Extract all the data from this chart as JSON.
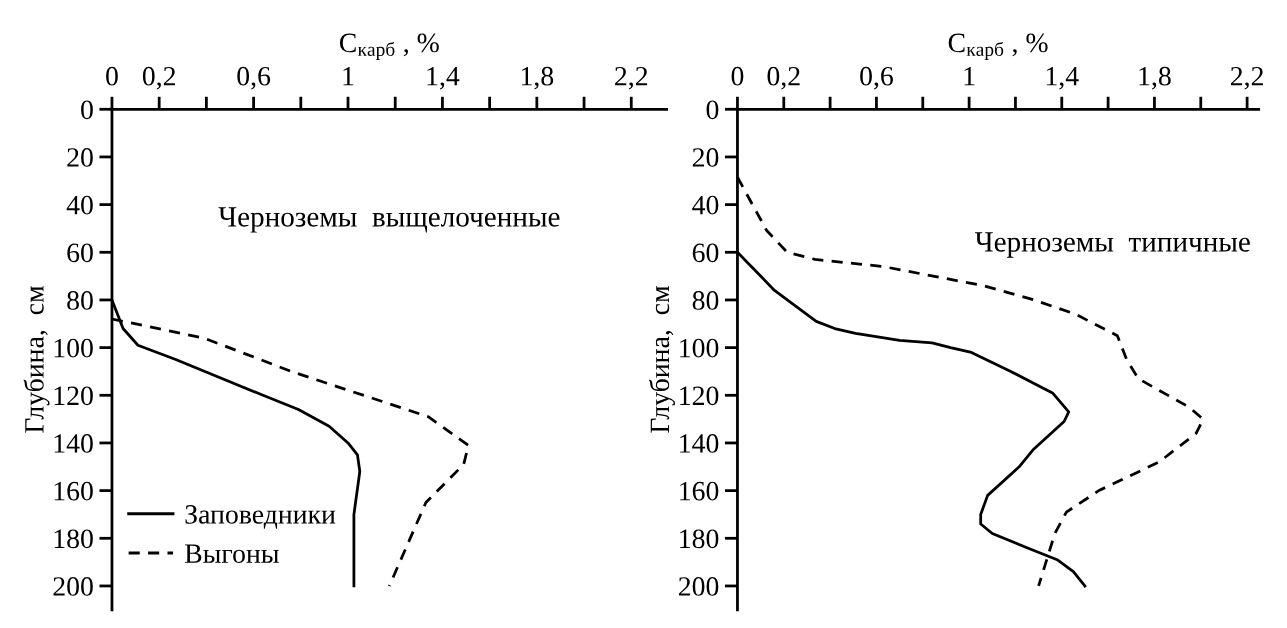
{
  "chart_data": [
    {
      "type": "line",
      "xlabel": "C$_{карб}$ , %",
      "ylabel": "Глубина,  см",
      "annotations": [
        "Черноземы  выщелоченные"
      ],
      "legend": "bottom left",
      "xlim": [
        0,
        2.35
      ],
      "xticks": [
        {
          "value": 0,
          "label": "0"
        },
        {
          "value": 0.2,
          "label": "0,2"
        },
        {
          "value": 0.4,
          "label": null
        },
        {
          "value": 0.6,
          "label": "0,6"
        },
        {
          "value": 0.8,
          "label": null
        },
        {
          "value": 1,
          "label": "1"
        },
        {
          "value": 1.2,
          "label": null
        },
        {
          "value": 1.4,
          "label": "1,4"
        },
        {
          "value": 1.6,
          "label": null
        },
        {
          "value": 1.8,
          "label": "1,8"
        },
        {
          "value": 2.0,
          "label": null
        },
        {
          "value": 2.2,
          "label": "2,2"
        }
      ],
      "ylim": [
        210,
        0
      ],
      "yticks": [
        {
          "value": 0,
          "label": "0"
        },
        {
          "value": 20,
          "label": "20"
        },
        {
          "value": 40,
          "label": "40"
        },
        {
          "value": 60,
          "label": "60"
        },
        {
          "value": 80,
          "label": "80"
        },
        {
          "value": 100,
          "label": "100"
        },
        {
          "value": 120,
          "label": "120"
        },
        {
          "value": 140,
          "label": "140"
        },
        {
          "value": 160,
          "label": "160"
        },
        {
          "value": 180,
          "label": "180"
        },
        {
          "value": 200,
          "label": "200"
        }
      ],
      "series": [
        {
          "name": "Заповедники",
          "color": "#000000",
          "line_style": "solid",
          "x": [
            0,
            0.047,
            0.11,
            0.27,
            0.64,
            0.79,
            0.92,
            1.0,
            1.04,
            1.05,
            1.025,
            1.025
          ],
          "values": [
            80,
            92,
            99,
            105,
            120,
            126,
            133,
            140,
            145,
            152,
            170,
            200
          ]
        },
        {
          "name": "Выгоны",
          "color": "#000000",
          "line_style": "dashed",
          "x": [
            0,
            0.39,
            0.76,
            1.34,
            1.51,
            1.49,
            1.33,
            1.175
          ],
          "values": [
            88,
            96,
            110,
            129,
            141,
            149,
            165,
            200
          ]
        }
      ]
    },
    {
      "type": "line",
      "xlabel": "C$_{карб}$ , %",
      "ylabel": "Глубина,  см",
      "annotations": [
        "Черноземы  типичные"
      ],
      "xlim": [
        0,
        2.25
      ],
      "xticks": [
        {
          "value": 0,
          "label": "0"
        },
        {
          "value": 0.2,
          "label": "0,2"
        },
        {
          "value": 0.4,
          "label": null
        },
        {
          "value": 0.6,
          "label": "0,6"
        },
        {
          "value": 0.8,
          "label": null
        },
        {
          "value": 1,
          "label": "1"
        },
        {
          "value": 1.2,
          "label": null
        },
        {
          "value": 1.4,
          "label": "1,4"
        },
        {
          "value": 1.6,
          "label": null
        },
        {
          "value": 1.8,
          "label": "1,8"
        },
        {
          "value": 2.0,
          "label": null
        },
        {
          "value": 2.2,
          "label": "2,2"
        }
      ],
      "ylim": [
        210,
        0
      ],
      "yticks": [
        {
          "value": 0,
          "label": "0"
        },
        {
          "value": 20,
          "label": "20"
        },
        {
          "value": 40,
          "label": "40"
        },
        {
          "value": 60,
          "label": "60"
        },
        {
          "value": 80,
          "label": "80"
        },
        {
          "value": 100,
          "label": "100"
        },
        {
          "value": 120,
          "label": "120"
        },
        {
          "value": 140,
          "label": "140"
        },
        {
          "value": 160,
          "label": "160"
        },
        {
          "value": 180,
          "label": "180"
        },
        {
          "value": 200,
          "label": "200"
        }
      ],
      "series": [
        {
          "color": "#000000",
          "line_style": "solid",
          "x": [
            0,
            0.16,
            0.34,
            0.42,
            0.51,
            0.7,
            0.84,
            0.92,
            1.01,
            1.18,
            1.36,
            1.43,
            1.41,
            1.275,
            1.216,
            1.08,
            1.05,
            1.05,
            1.1,
            1.25,
            1.38,
            1.45,
            1.5
          ],
          "values": [
            60,
            76,
            89,
            92,
            94,
            97,
            98,
            100,
            102,
            110,
            119,
            127,
            131,
            143,
            150,
            162,
            170,
            174,
            178,
            184,
            189,
            194,
            200
          ]
        },
        {
          "color": "#000000",
          "line_style": "dashed",
          "x": [
            0,
            0.127,
            0.215,
            0.335,
            0.63,
            1.06,
            1.28,
            1.46,
            1.64,
            1.68,
            1.73,
            1.95,
            2.01,
            1.98,
            1.82,
            1.56,
            1.42,
            1.37,
            1.3
          ],
          "values": [
            28.5,
            51,
            60,
            63,
            66,
            74,
            80,
            86,
            95,
            105,
            113,
            125,
            130,
            136,
            148,
            160,
            169,
            178,
            200
          ]
        }
      ]
    }
  ]
}
